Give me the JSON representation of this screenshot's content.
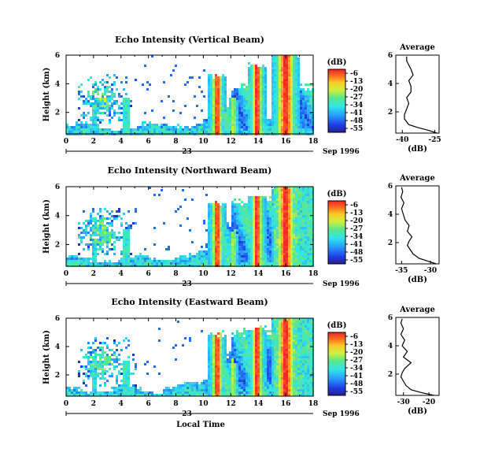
{
  "chart_data": [
    {
      "type": "heatmap",
      "title": "Echo Intensity (Vertical Beam)",
      "ylabel": "Height (km)",
      "xlim": [
        0,
        18
      ],
      "ylim": [
        0.5,
        6
      ],
      "xticks": [
        "0",
        "2",
        "4",
        "6",
        "8",
        "10",
        "12",
        "14",
        "16",
        "18"
      ],
      "yticks": [
        "2",
        "4",
        "6"
      ],
      "colorbar": {
        "unit": "(dB)",
        "labels": [
          "-6",
          "-13",
          "-20",
          "-27",
          "-34",
          "-41",
          "-48",
          "-55"
        ]
      },
      "day_label": "23",
      "month_label": "Sep 1996",
      "profile": {
        "title": "Average",
        "xlabel": "(dB)",
        "xticks": [
          "-40",
          "-25"
        ],
        "xlim": [
          -43,
          -23
        ],
        "heights": [
          0.5,
          0.7,
          0.9,
          1.1,
          1.3,
          1.5,
          1.8,
          2.2,
          2.6,
          3.0,
          3.4,
          3.8,
          4.2,
          4.6,
          5.0,
          5.3,
          5.6,
          5.9
        ],
        "values": [
          -24,
          -28,
          -33,
          -37,
          -38,
          -39,
          -39,
          -38,
          -37,
          -38,
          -36,
          -36,
          -37,
          -35,
          -36,
          -37,
          -38,
          -38
        ]
      }
    },
    {
      "type": "heatmap",
      "title": "Echo Intensity (Northward Beam)",
      "ylabel": "Height (km)",
      "xlim": [
        0,
        18
      ],
      "ylim": [
        0.5,
        6
      ],
      "xticks": [
        "0",
        "2",
        "4",
        "6",
        "8",
        "10",
        "12",
        "14",
        "16",
        "18"
      ],
      "yticks": [
        "2",
        "4",
        "6"
      ],
      "colorbar": {
        "unit": "(dB)",
        "labels": [
          "-6",
          "-13",
          "-20",
          "-27",
          "-34",
          "-41",
          "-48",
          "-55"
        ]
      },
      "day_label": "23",
      "month_label": "Sep 1996",
      "profile": {
        "title": "Average",
        "xlabel": "(dB)",
        "xticks": [
          "-35",
          "-30"
        ],
        "xlim": [
          -36,
          -28.5
        ],
        "heights": [
          0.5,
          0.7,
          0.9,
          1.2,
          1.5,
          1.8,
          2.1,
          2.4,
          2.8,
          3.2,
          3.6,
          4.0,
          4.4,
          4.8,
          5.2,
          5.6,
          5.9
        ],
        "values": [
          -29,
          -30.5,
          -32,
          -33,
          -33.5,
          -34,
          -33.7,
          -33.2,
          -34,
          -33.7,
          -34.4,
          -34.7,
          -35,
          -34.6,
          -35.1,
          -34.8,
          -35
        ]
      }
    },
    {
      "type": "heatmap",
      "title": "Echo Intensity (Eastward Beam)",
      "ylabel": "Height (km)",
      "xlim": [
        0,
        18
      ],
      "ylim": [
        0.5,
        6
      ],
      "xticks": [
        "0",
        "2",
        "4",
        "6",
        "8",
        "10",
        "12",
        "14",
        "16",
        "18"
      ],
      "yticks": [
        "2",
        "4",
        "6"
      ],
      "xlabel": "Local Time",
      "colorbar": {
        "unit": "(dB)",
        "labels": [
          "-6",
          "-13",
          "-20",
          "-27",
          "-34",
          "-41",
          "-48",
          "-55"
        ]
      },
      "day_label": "23",
      "month_label": "Sep 1996",
      "profile": {
        "title": "Average",
        "xlabel": "(dB)",
        "xticks": [
          "-30",
          "-20"
        ],
        "xlim": [
          -33,
          -16
        ],
        "heights": [
          0.5,
          0.7,
          0.9,
          1.2,
          1.5,
          1.8,
          2.1,
          2.4,
          2.8,
          3.2,
          3.6,
          4.0,
          4.4,
          4.8,
          5.2,
          5.6,
          5.9
        ],
        "values": [
          -18,
          -23,
          -27,
          -29,
          -30,
          -31,
          -30.5,
          -29.5,
          -27,
          -30,
          -28.5,
          -30.5,
          -29.5,
          -31,
          -30,
          -31,
          -30.5
        ]
      }
    }
  ]
}
